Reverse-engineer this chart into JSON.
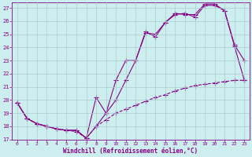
{
  "background_color": "#cceeee",
  "grid_color": "#aacccc",
  "line_color": "#880088",
  "xlabel": "Windchill (Refroidissement éolien,°C)",
  "xlim": [
    -0.5,
    23.5
  ],
  "ylim": [
    17,
    27.4
  ],
  "yticks": [
    17,
    18,
    19,
    20,
    21,
    22,
    23,
    24,
    25,
    26,
    27
  ],
  "xticks": [
    0,
    1,
    2,
    3,
    4,
    5,
    6,
    7,
    8,
    9,
    10,
    11,
    12,
    13,
    14,
    15,
    16,
    17,
    18,
    19,
    20,
    21,
    22,
    23
  ],
  "series1_x": [
    0,
    1,
    2,
    3,
    4,
    5,
    6,
    7,
    8,
    9,
    10,
    11,
    12,
    13,
    14,
    15,
    16,
    17,
    18,
    19,
    20,
    21,
    22,
    23
  ],
  "series1_y": [
    19.8,
    18.6,
    18.2,
    18.0,
    17.8,
    17.7,
    17.7,
    17.1,
    20.2,
    19.0,
    21.5,
    23.0,
    23.0,
    25.2,
    24.8,
    25.9,
    26.6,
    26.5,
    26.5,
    27.3,
    27.3,
    26.8,
    24.1,
    21.5
  ],
  "series2_x": [
    0,
    1,
    2,
    3,
    4,
    5,
    6,
    7,
    8,
    9,
    10,
    11,
    12,
    13,
    14,
    15,
    16,
    17,
    18,
    19,
    20,
    21,
    22,
    23
  ],
  "series2_y": [
    19.8,
    18.6,
    18.2,
    18.0,
    17.8,
    17.7,
    17.7,
    17.1,
    18.0,
    19.0,
    20.0,
    21.5,
    23.0,
    25.1,
    25.0,
    25.9,
    26.5,
    26.6,
    26.3,
    27.2,
    27.2,
    26.8,
    24.2,
    23.0
  ],
  "series3_x": [
    0,
    1,
    2,
    3,
    4,
    5,
    6,
    7,
    8,
    9,
    10,
    11,
    12,
    13,
    14,
    15,
    16,
    17,
    18,
    19,
    20,
    21,
    22,
    23
  ],
  "series3_y": [
    19.8,
    18.6,
    18.2,
    18.0,
    17.8,
    17.7,
    17.6,
    17.1,
    18.0,
    18.5,
    19.0,
    19.3,
    19.6,
    19.9,
    20.2,
    20.4,
    20.7,
    20.9,
    21.1,
    21.2,
    21.3,
    21.4,
    21.5,
    21.5
  ]
}
